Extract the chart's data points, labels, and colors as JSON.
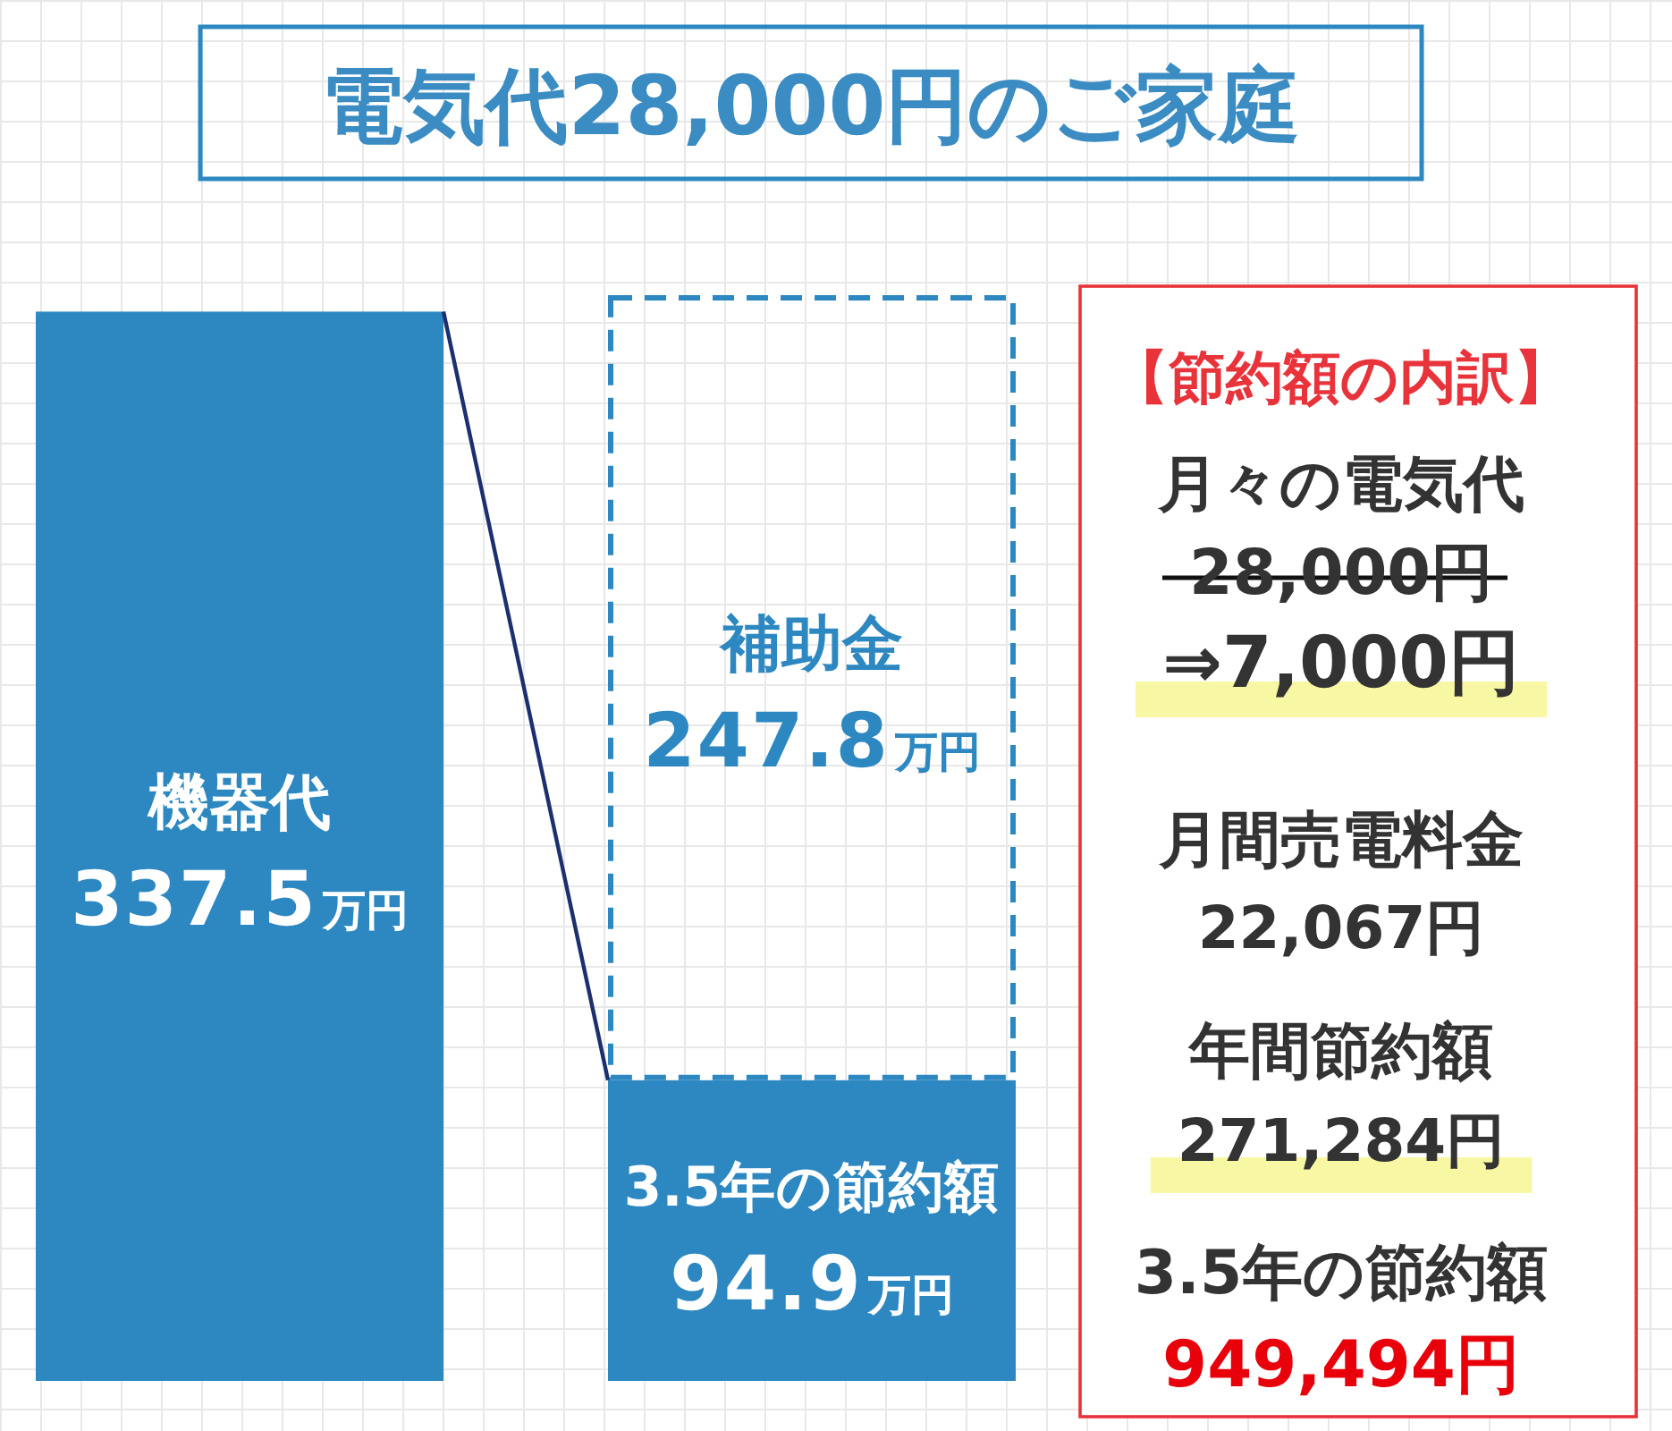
{
  "chart_data": [
    {
      "type": "bar",
      "title": "電気代28,000円のご家庭",
      "categories": [
        null,
        null
      ],
      "stacked": true,
      "series": [
        {
          "name": "機器代",
          "color": "#2d88c1",
          "values": [
            337.5,
            null
          ],
          "value_labels": [
            "337.5万円",
            null
          ]
        },
        {
          "name": "3.5年の節約額",
          "color": "#2d88c1",
          "values": [
            null,
            94.9
          ],
          "value_labels": [
            null,
            "94.9万円"
          ]
        },
        {
          "name": "補助金",
          "color": "#2d88c1",
          "values": [
            null,
            247.8
          ],
          "value_labels": [
            null,
            "247.8万円"
          ],
          "line_style": "dashed"
        }
      ]
    },
    {
      "type": "other",
      "title": "【節約額の内訳】",
      "annotations": [
        "月々の電気代",
        "28,000円",
        "⇒7,000円",
        "月間売電料金",
        "22,067円",
        "年間節約額",
        "271,284円",
        "3.5年の節約額",
        "949,494円"
      ]
    }
  ]
}
